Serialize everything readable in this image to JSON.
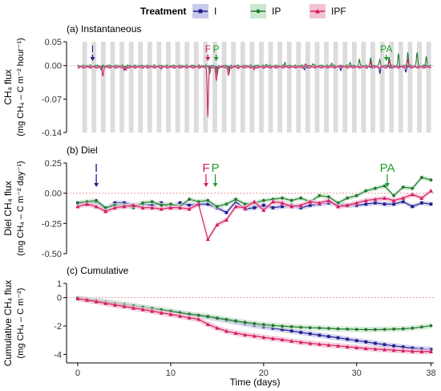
{
  "legend": {
    "title": "Treatment",
    "items": [
      {
        "label": "I",
        "color": "#1f1f8f",
        "fill": "#c9c9ec",
        "marker": "square"
      },
      {
        "label": "IP",
        "color": "#1e7a2e",
        "fill": "#cde6cf",
        "marker": "circle"
      },
      {
        "label": "IPF",
        "color": "#d81b60",
        "fill": "#f3c2d5",
        "marker": "triangle"
      }
    ]
  },
  "x_axis": {
    "label": "Time (days)",
    "ticks": [
      "0",
      "10",
      "20",
      "30",
      "38"
    ],
    "range": [
      -1.2,
      38.3
    ]
  },
  "chart_data": [
    {
      "type": "line",
      "title": "(a) Instantaneous",
      "ylabel": [
        "CH₄ flux",
        "(mg CH₄ – C m⁻² hour⁻¹)"
      ],
      "yticks": [
        "0.05",
        "0.00",
        "-0.07",
        "-0.14"
      ],
      "ylim": [
        -0.14,
        0.05
      ],
      "day_night_shading": true,
      "annotations": [
        {
          "label": "I",
          "x": 1.6,
          "color": "#1f1f8f"
        },
        {
          "label": "F",
          "x": 14.0,
          "color": "#d81b60"
        },
        {
          "label": "P",
          "x": 14.9,
          "color": "#1e9e2e"
        },
        {
          "label": "PA",
          "x": 33.2,
          "color": "#1e9e2e"
        }
      ],
      "series": [
        {
          "name": "I",
          "color": "#1f1f8f",
          "baseline": -0.002,
          "events": [
            [
              2.5,
              -0.006
            ],
            [
              5.0,
              -0.008
            ],
            [
              9.0,
              -0.005
            ],
            [
              15.2,
              -0.005
            ],
            [
              17.3,
              -0.006
            ],
            [
              24.4,
              -0.008
            ],
            [
              28.3,
              -0.007
            ],
            [
              32.5,
              -0.015
            ],
            [
              35.3,
              -0.013
            ]
          ]
        },
        {
          "name": "IP",
          "color": "#1e7a2e",
          "baseline": -0.001,
          "events": [
            [
              2.5,
              -0.005
            ],
            [
              14.2,
              -0.015
            ],
            [
              15.0,
              -0.02
            ],
            [
              16.3,
              -0.012
            ],
            [
              20.3,
              0.006
            ],
            [
              22.3,
              0.008
            ],
            [
              25.3,
              0.005
            ],
            [
              27.3,
              0.006
            ],
            [
              29.3,
              0.01
            ],
            [
              30.3,
              0.012
            ],
            [
              31.5,
              0.018
            ],
            [
              32.5,
              0.014
            ],
            [
              33.5,
              0.02
            ],
            [
              34.5,
              0.024
            ],
            [
              35.5,
              0.03
            ],
            [
              36.5,
              0.028
            ],
            [
              37.5,
              0.022
            ]
          ]
        },
        {
          "name": "IPF",
          "color": "#d81b60",
          "baseline": -0.003,
          "events": [
            [
              2.7,
              -0.018
            ],
            [
              5.2,
              -0.008
            ],
            [
              14.0,
              -0.105
            ],
            [
              14.9,
              -0.03
            ],
            [
              16.2,
              -0.02
            ],
            [
              19.0,
              -0.007
            ],
            [
              24.5,
              0.006
            ],
            [
              28.3,
              0.004
            ],
            [
              31.5,
              0.01
            ],
            [
              33.5,
              0.012
            ],
            [
              35.5,
              0.015
            ]
          ]
        }
      ]
    },
    {
      "type": "line",
      "title": "(b) Diel",
      "ylabel": [
        "Diel CH₄ flux",
        "(mg CH₄ – C m⁻² day⁻¹)"
      ],
      "yticks": [
        "0.25",
        "0.00",
        "-0.25",
        "-0.50"
      ],
      "ylim": [
        -0.5,
        0.25
      ],
      "annotations": [
        {
          "label": "I",
          "x": 2.0,
          "color": "#1f1f8f"
        },
        {
          "label": "F",
          "x": 13.8,
          "color": "#d81b60"
        },
        {
          "label": "P",
          "x": 14.8,
          "color": "#1e9e2e"
        },
        {
          "label": "PA",
          "x": 33.3,
          "color": "#1e9e2e"
        }
      ],
      "x": [
        0,
        1,
        2,
        3,
        4,
        5,
        6,
        7,
        8,
        9,
        10,
        11,
        12,
        13,
        14,
        15,
        16,
        17,
        18,
        19,
        20,
        21,
        22,
        23,
        24,
        25,
        26,
        27,
        28,
        29,
        30,
        31,
        32,
        33,
        34,
        35,
        36,
        37,
        38
      ],
      "series": [
        {
          "name": "I",
          "color": "#1f1f8f",
          "values": [
            -0.08,
            -0.09,
            -0.07,
            -0.13,
            -0.08,
            -0.08,
            -0.1,
            -0.09,
            -0.1,
            -0.08,
            -0.12,
            -0.08,
            -0.1,
            -0.09,
            -0.09,
            -0.12,
            -0.16,
            -0.07,
            -0.13,
            -0.12,
            -0.1,
            -0.12,
            -0.11,
            -0.1,
            -0.12,
            -0.1,
            -0.09,
            -0.08,
            -0.09,
            -0.1,
            -0.1,
            -0.09,
            -0.08,
            -0.09,
            -0.09,
            -0.07,
            -0.11,
            -0.08,
            -0.09
          ]
        },
        {
          "name": "IP",
          "color": "#1e7a2e",
          "values": [
            -0.08,
            -0.07,
            -0.06,
            -0.12,
            -0.1,
            -0.1,
            -0.12,
            -0.08,
            -0.07,
            -0.1,
            -0.09,
            -0.11,
            -0.05,
            -0.07,
            -0.06,
            -0.11,
            -0.09,
            -0.05,
            -0.09,
            -0.08,
            -0.06,
            -0.05,
            -0.04,
            -0.06,
            -0.04,
            -0.07,
            -0.02,
            -0.03,
            -0.08,
            -0.04,
            -0.02,
            0.02,
            0.04,
            0.06,
            -0.02,
            0.05,
            0.04,
            0.13,
            0.11
          ]
        },
        {
          "name": "IPF",
          "color": "#d81b60",
          "values": [
            -0.11,
            -0.09,
            -0.11,
            -0.15,
            -0.12,
            -0.11,
            -0.1,
            -0.12,
            -0.12,
            -0.13,
            -0.12,
            -0.12,
            -0.13,
            -0.09,
            -0.38,
            -0.26,
            -0.22,
            -0.11,
            -0.12,
            -0.07,
            -0.14,
            -0.07,
            -0.08,
            -0.11,
            -0.1,
            -0.07,
            -0.08,
            -0.06,
            -0.11,
            -0.1,
            -0.08,
            -0.06,
            -0.05,
            -0.04,
            -0.06,
            -0.04,
            -0.01,
            -0.04,
            0.02
          ]
        }
      ]
    },
    {
      "type": "line",
      "title": "(c) Cumulative",
      "ylabel": [
        "Cumulative CH₄ flux",
        "(mg CH₄ – C m⁻²)"
      ],
      "yticks": [
        "1",
        "0",
        "-2",
        "-4"
      ],
      "ylim": [
        -4.6,
        1.0
      ],
      "x": [
        0,
        1,
        2,
        3,
        4,
        5,
        6,
        7,
        8,
        9,
        10,
        11,
        12,
        13,
        14,
        15,
        16,
        17,
        18,
        19,
        20,
        21,
        22,
        23,
        24,
        25,
        26,
        27,
        28,
        29,
        30,
        31,
        32,
        33,
        34,
        35,
        36,
        37,
        38
      ],
      "series": [
        {
          "name": "I",
          "color": "#1f1f8f",
          "values": [
            -0.05,
            -0.14,
            -0.23,
            -0.32,
            -0.41,
            -0.5,
            -0.6,
            -0.69,
            -0.79,
            -0.88,
            -0.98,
            -1.08,
            -1.18,
            -1.27,
            -1.36,
            -1.48,
            -1.6,
            -1.72,
            -1.84,
            -1.95,
            -2.05,
            -2.15,
            -2.25,
            -2.35,
            -2.45,
            -2.55,
            -2.65,
            -2.74,
            -2.83,
            -2.93,
            -3.03,
            -3.12,
            -3.22,
            -3.31,
            -3.4,
            -3.48,
            -3.56,
            -3.62,
            -3.65
          ]
        },
        {
          "name": "IP",
          "color": "#1e7a2e",
          "values": [
            -0.05,
            -0.13,
            -0.22,
            -0.31,
            -0.4,
            -0.49,
            -0.58,
            -0.68,
            -0.77,
            -0.86,
            -0.96,
            -1.06,
            -1.16,
            -1.24,
            -1.33,
            -1.44,
            -1.54,
            -1.64,
            -1.74,
            -1.83,
            -1.9,
            -1.96,
            -2.01,
            -2.05,
            -2.09,
            -2.12,
            -2.14,
            -2.17,
            -2.2,
            -2.22,
            -2.24,
            -2.25,
            -2.25,
            -2.24,
            -2.22,
            -2.2,
            -2.15,
            -2.07,
            -1.98
          ]
        },
        {
          "name": "IPF",
          "color": "#d81b60",
          "values": [
            -0.07,
            -0.17,
            -0.28,
            -0.4,
            -0.51,
            -0.62,
            -0.73,
            -0.84,
            -0.95,
            -1.07,
            -1.18,
            -1.3,
            -1.42,
            -1.52,
            -1.88,
            -2.14,
            -2.36,
            -2.5,
            -2.62,
            -2.7,
            -2.8,
            -2.88,
            -2.96,
            -3.06,
            -3.14,
            -3.22,
            -3.28,
            -3.34,
            -3.4,
            -3.46,
            -3.52,
            -3.58,
            -3.62,
            -3.66,
            -3.7,
            -3.74,
            -3.78,
            -3.8,
            -3.8
          ]
        }
      ]
    }
  ]
}
